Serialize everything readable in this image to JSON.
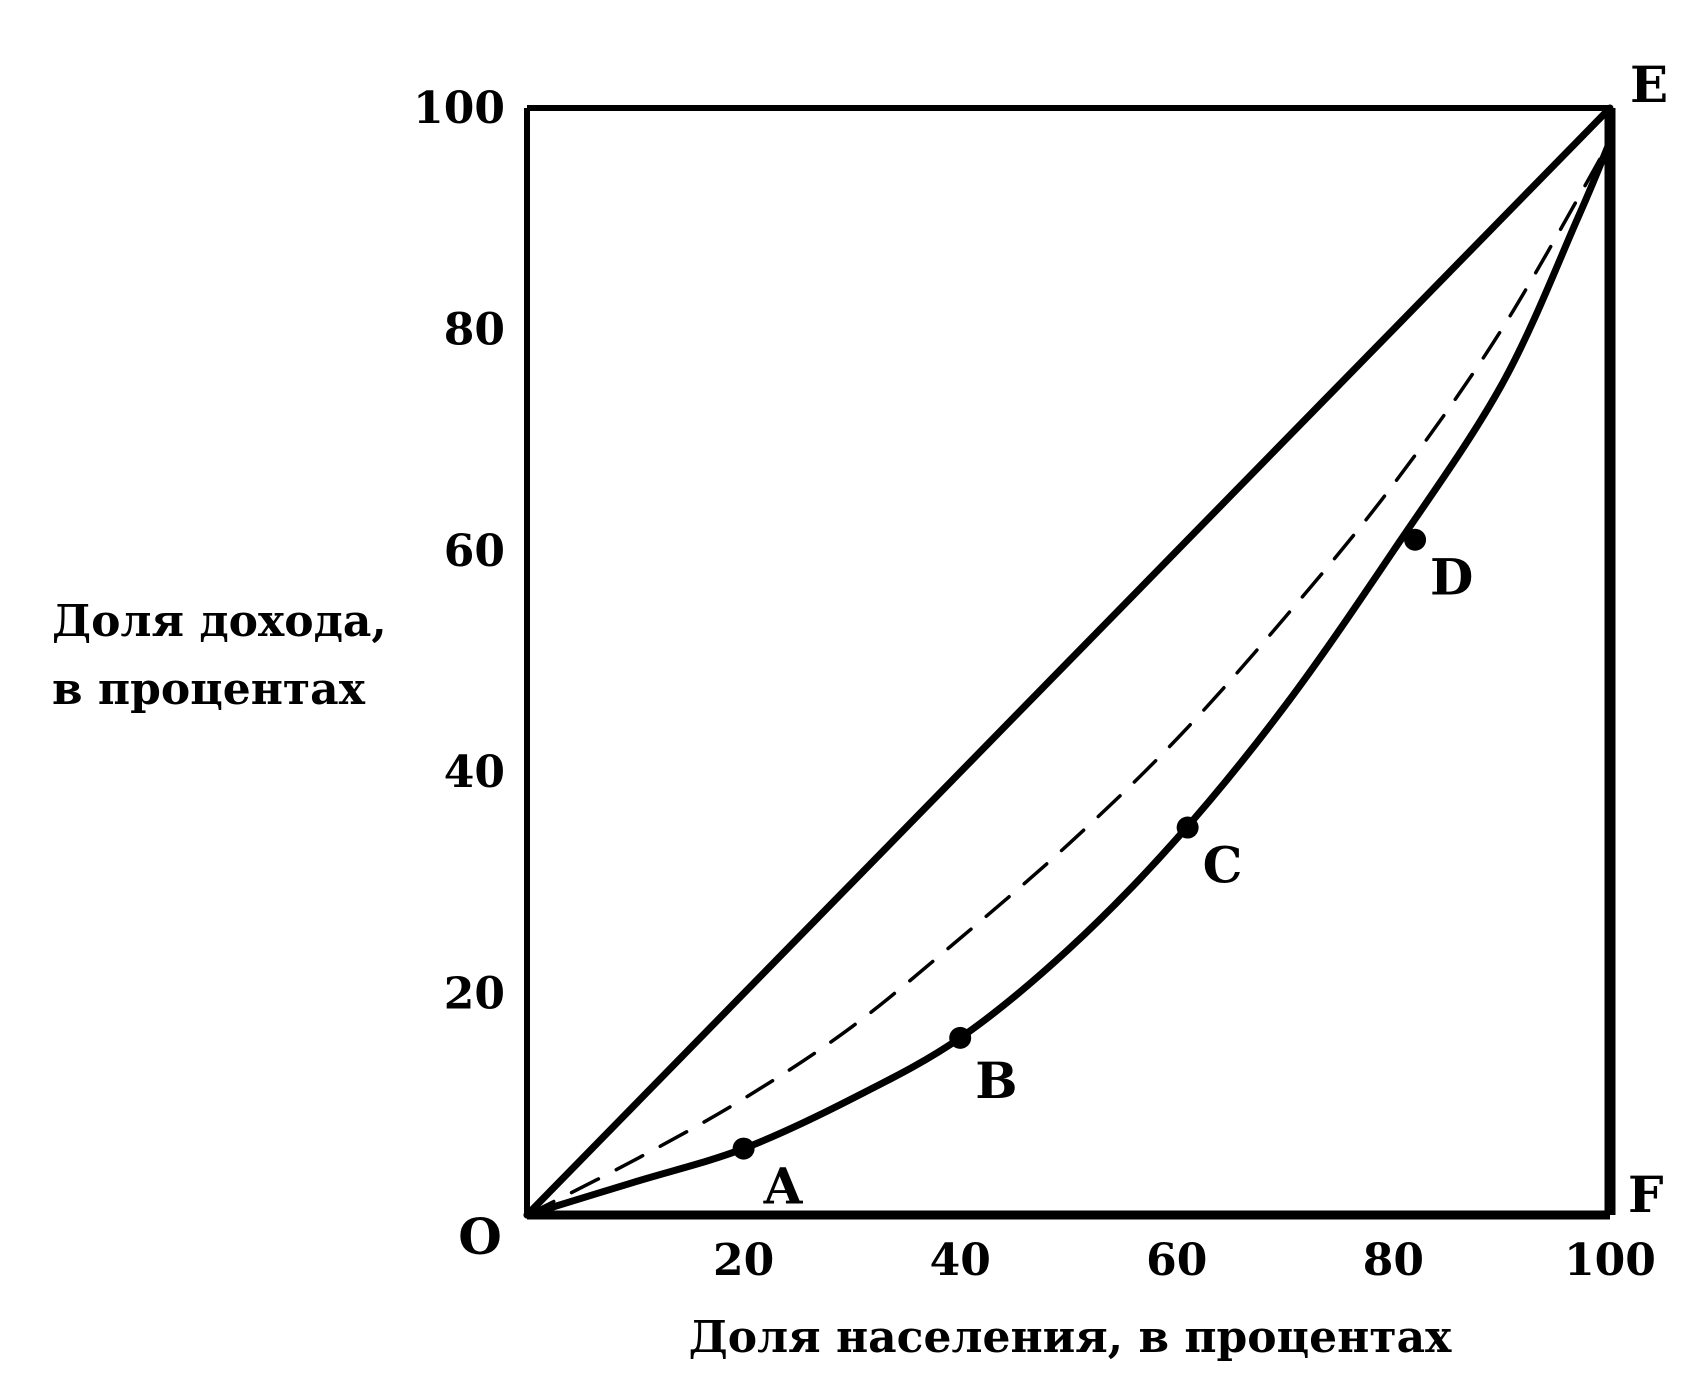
{
  "chart_data": {
    "type": "line",
    "xlabel": "Доля населения, в процентах",
    "ylabel_lines": [
      "Доля дохода,",
      "в процентах"
    ],
    "xlim": [
      0,
      100
    ],
    "ylim": [
      0,
      100
    ],
    "x_ticks": [
      "20",
      "40",
      "60",
      "80",
      "100"
    ],
    "y_ticks": [
      "20",
      "40",
      "60",
      "80",
      "100"
    ],
    "grid": false,
    "legend": "none",
    "series": [
      {
        "style": "solid",
        "x": [
          0,
          10,
          20,
          30,
          40,
          50,
          60,
          70,
          80,
          90,
          100
        ],
        "y": [
          0,
          10,
          20,
          30,
          40,
          50,
          60,
          70,
          80,
          90,
          100
        ]
      },
      {
        "style": "dashed",
        "x": [
          0,
          10,
          20,
          30,
          40,
          50,
          60,
          70,
          80,
          90,
          100
        ],
        "y": [
          0,
          5,
          10.5,
          17,
          25,
          33.5,
          43,
          54,
          66,
          80,
          97
        ]
      },
      {
        "style": "solid",
        "x": [
          0,
          10,
          20,
          30,
          40,
          50,
          60,
          70,
          80,
          90,
          97,
          100
        ],
        "y": [
          0,
          3,
          6,
          10.5,
          16,
          24,
          34,
          46,
          60,
          75,
          90,
          97
        ]
      }
    ],
    "points": [
      {
        "label": "A",
        "x": 20,
        "y": 6
      },
      {
        "label": "B",
        "x": 40,
        "y": 16
      },
      {
        "label": "C",
        "x": 61,
        "y": 35
      },
      {
        "label": "D",
        "x": 82,
        "y": 61
      }
    ],
    "corner_labels": {
      "origin": "O",
      "top_right": "E",
      "bottom_right": "F"
    }
  }
}
